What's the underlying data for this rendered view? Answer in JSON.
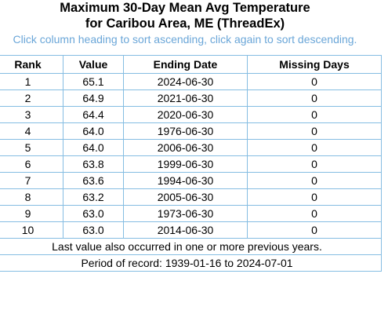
{
  "header": {
    "title_line1": "Maximum 30-Day Mean Avg Temperature",
    "title_line2": "for Caribou Area, ME (ThreadEx)",
    "instructions": "Click column heading to sort ascending, click again to sort descending."
  },
  "table": {
    "columns": [
      "Rank",
      "Value",
      "Ending Date",
      "Missing Days"
    ],
    "rows": [
      {
        "rank": "1",
        "value": "65.1",
        "ending_date": "2024-06-30",
        "missing_days": "0"
      },
      {
        "rank": "2",
        "value": "64.9",
        "ending_date": "2021-06-30",
        "missing_days": "0"
      },
      {
        "rank": "3",
        "value": "64.4",
        "ending_date": "2020-06-30",
        "missing_days": "0"
      },
      {
        "rank": "4",
        "value": "64.0",
        "ending_date": "1976-06-30",
        "missing_days": "0"
      },
      {
        "rank": "5",
        "value": "64.0",
        "ending_date": "2006-06-30",
        "missing_days": "0"
      },
      {
        "rank": "6",
        "value": "63.8",
        "ending_date": "1999-06-30",
        "missing_days": "0"
      },
      {
        "rank": "7",
        "value": "63.6",
        "ending_date": "1994-06-30",
        "missing_days": "0"
      },
      {
        "rank": "8",
        "value": "63.2",
        "ending_date": "2005-06-30",
        "missing_days": "0"
      },
      {
        "rank": "9",
        "value": "63.0",
        "ending_date": "1973-06-30",
        "missing_days": "0"
      },
      {
        "rank": "10",
        "value": "63.0",
        "ending_date": "2014-06-30",
        "missing_days": "0"
      }
    ],
    "footnote": "Last value also occurred in one or more previous years.",
    "period_of_record": "Period of record: 1939-01-16 to 2024-07-01"
  },
  "colors": {
    "instructions_text": "#6aa6d8",
    "table_border": "#85bde2"
  }
}
